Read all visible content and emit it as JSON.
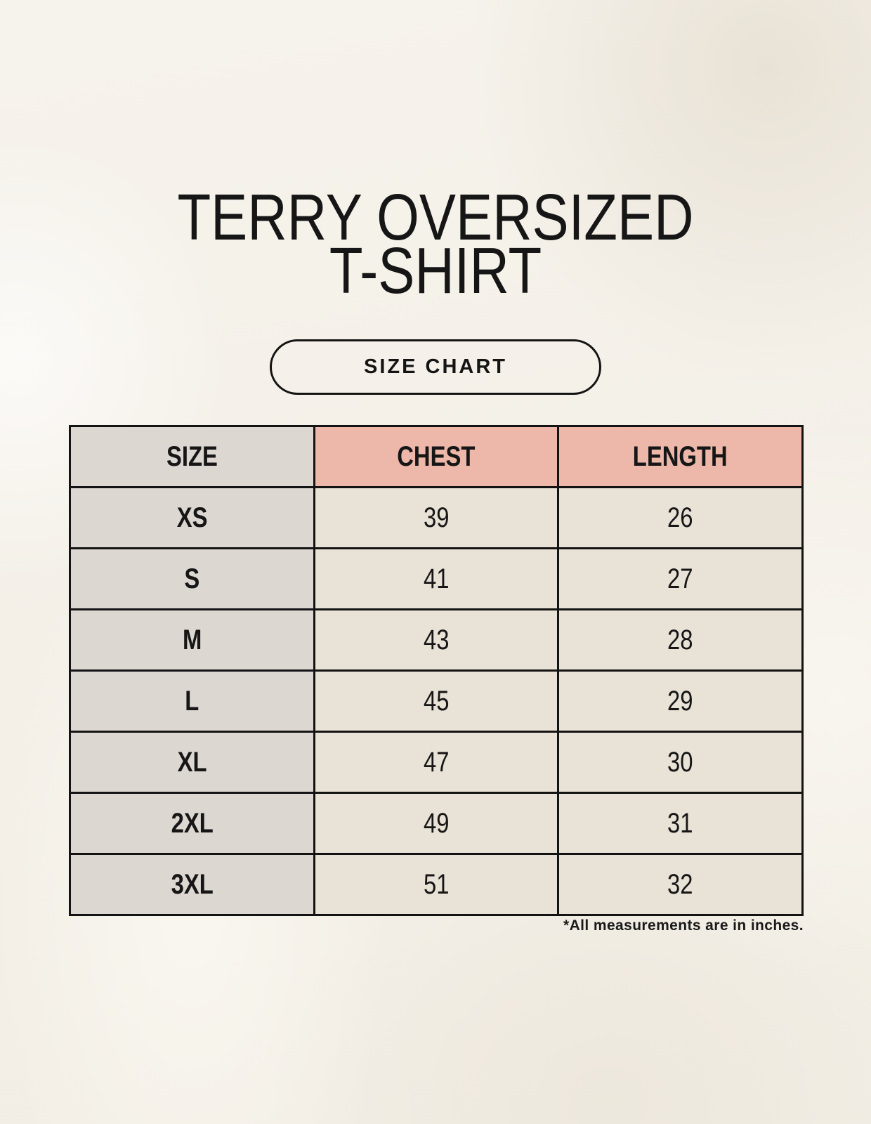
{
  "header": {
    "title_line1": "TERRY OVERSIZED",
    "title_line2": "T-SHIRT",
    "size_chart_label": "SIZE CHART"
  },
  "chart_data": {
    "type": "table",
    "title": "TERRY OVERSIZED T-SHIRT",
    "columns": [
      "SIZE",
      "CHEST",
      "LENGTH"
    ],
    "rows": [
      [
        "XS",
        39,
        26
      ],
      [
        "S",
        41,
        27
      ],
      [
        "M",
        43,
        28
      ],
      [
        "L",
        45,
        29
      ],
      [
        "XL",
        47,
        30
      ],
      [
        "2XL",
        49,
        31
      ],
      [
        "3XL",
        51,
        32
      ]
    ],
    "note": "*All measurements are in inches.",
    "units": "inches"
  },
  "footer": {
    "note": "*All measurements are in inches."
  },
  "colors": {
    "background": "#f4f0e8",
    "accent_pink": "#edb7a9",
    "cell_gray": "#ddd7d2",
    "cell_cream": "#e9e2d6",
    "border_black": "#131313",
    "text": "#161616"
  }
}
